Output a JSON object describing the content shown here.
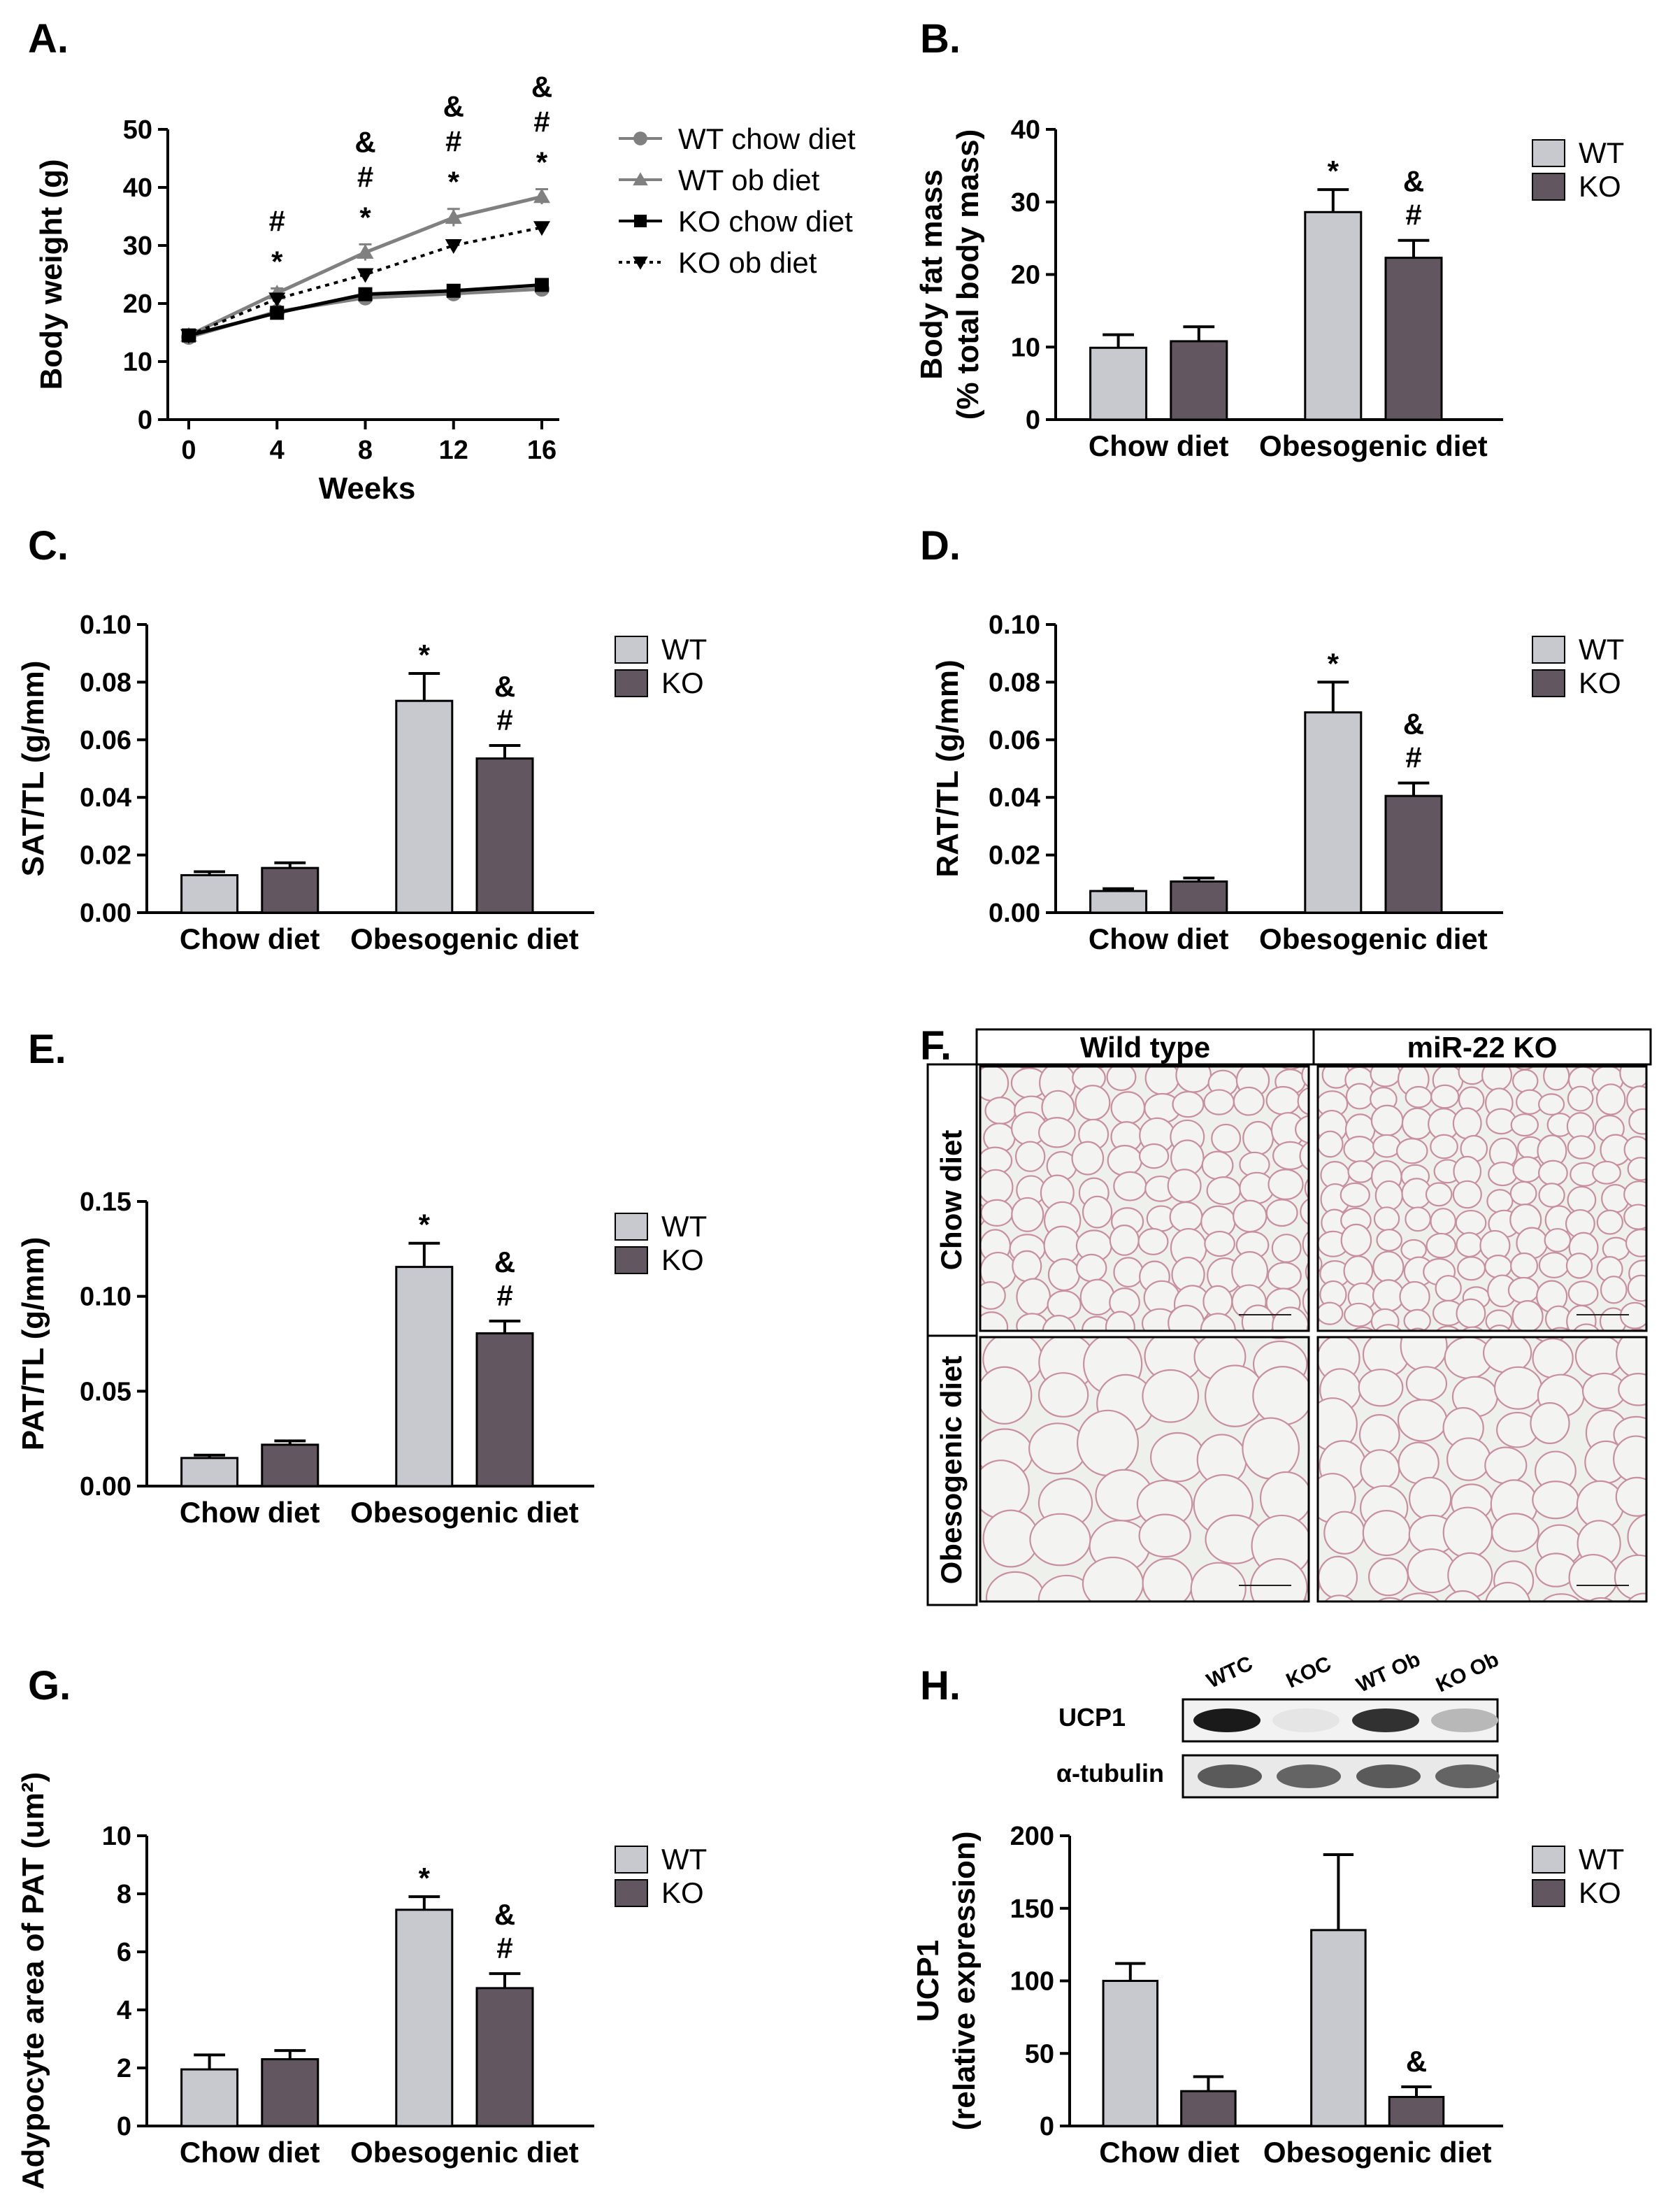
{
  "colors": {
    "wt": "#c8c8cf",
    "ko": "#625760",
    "line_gray": "#808080",
    "line_black": "#000000",
    "tissue_bg": "#eef0ec",
    "tissue_cell": "#c8909e"
  },
  "chart_data": [
    {
      "id": "A",
      "panel_label": "A.",
      "type": "line",
      "ylabel": "Body weight (g)",
      "xlabel": "Weeks",
      "ylim": [
        0,
        50
      ],
      "yticks": [
        0,
        10,
        20,
        30,
        40,
        50
      ],
      "x": [
        0,
        4,
        8,
        12,
        16
      ],
      "xticks": [
        "0",
        "4",
        "8",
        "12",
        "16"
      ],
      "legend_position": "right",
      "series": [
        {
          "name": "WT chow diet",
          "marker": "circle",
          "dash": "solid",
          "color": "#808080",
          "values": [
            14.2,
            18.6,
            21.0,
            21.7,
            22.5
          ],
          "errors": [
            0.4,
            0.5,
            0.6,
            0.6,
            0.7
          ]
        },
        {
          "name": "WT ob diet",
          "marker": "triangle-up",
          "dash": "solid",
          "color": "#808080",
          "values": [
            14.5,
            21.8,
            28.8,
            34.8,
            38.4
          ],
          "errors": [
            0.5,
            0.8,
            1.4,
            1.5,
            1.3
          ]
        },
        {
          "name": "KO chow diet",
          "marker": "square",
          "dash": "solid",
          "color": "#000000",
          "values": [
            14.5,
            18.4,
            21.6,
            22.2,
            23.2
          ],
          "errors": [
            0.3,
            0.4,
            0.4,
            0.4,
            0.4
          ]
        },
        {
          "name": "KO ob diet",
          "marker": "triangle-down",
          "dash": "dotted",
          "color": "#000000",
          "values": [
            14.5,
            20.8,
            25.0,
            30.0,
            33.1
          ],
          "errors": [
            0.3,
            0.4,
            0.5,
            0.5,
            0.5
          ]
        }
      ],
      "annotations": [
        {
          "x": 4,
          "lines": [
            "#",
            "*"
          ]
        },
        {
          "x": 8,
          "lines": [
            "&",
            "#",
            "*"
          ]
        },
        {
          "x": 12,
          "lines": [
            "&",
            "#",
            "*"
          ]
        },
        {
          "x": 16,
          "lines": [
            "&",
            "#",
            "*"
          ]
        }
      ]
    },
    {
      "id": "B",
      "panel_label": "B.",
      "type": "bar",
      "ylabel_lines": [
        "Body fat mass",
        "(% total body mass)"
      ],
      "ylim": [
        0,
        40
      ],
      "yticks": [
        "0",
        "10",
        "20",
        "30",
        "40"
      ],
      "categories": [
        "Chow diet",
        "Obesogenic diet"
      ],
      "series": [
        {
          "name": "WT",
          "values": [
            9.9,
            28.6
          ],
          "errors": [
            1.8,
            3.1
          ]
        },
        {
          "name": "KO",
          "values": [
            10.8,
            22.3
          ],
          "errors": [
            2.0,
            2.4
          ]
        }
      ],
      "annotations": [
        {
          "cat": 1,
          "series": 0,
          "lines": [
            "*"
          ]
        },
        {
          "cat": 1,
          "series": 1,
          "lines": [
            "&",
            "#"
          ]
        }
      ],
      "legend_position": "top-right"
    },
    {
      "id": "C",
      "panel_label": "C.",
      "type": "bar",
      "ylabel_lines": [
        "SAT/TL  (g/mm)"
      ],
      "ylim": [
        0,
        0.1
      ],
      "yticks": [
        "0.00",
        "0.02",
        "0.04",
        "0.06",
        "0.08",
        "0.10"
      ],
      "categories": [
        "Chow diet",
        "Obesogenic diet"
      ],
      "series": [
        {
          "name": "WT",
          "values": [
            0.013,
            0.0735
          ],
          "errors": [
            0.0012,
            0.0095
          ]
        },
        {
          "name": "KO",
          "values": [
            0.0155,
            0.0535
          ],
          "errors": [
            0.0018,
            0.0045
          ]
        }
      ],
      "annotations": [
        {
          "cat": 1,
          "series": 0,
          "lines": [
            "*"
          ]
        },
        {
          "cat": 1,
          "series": 1,
          "lines": [
            "&",
            "#"
          ]
        }
      ],
      "legend_position": "top-right"
    },
    {
      "id": "D",
      "panel_label": "D.",
      "type": "bar",
      "ylabel_lines": [
        "RAT/TL  (g/mm)"
      ],
      "ylim": [
        0,
        0.1
      ],
      "yticks": [
        "0.00",
        "0.02",
        "0.04",
        "0.06",
        "0.08",
        "0.10"
      ],
      "categories": [
        "Chow diet",
        "Obesogenic diet"
      ],
      "series": [
        {
          "name": "WT",
          "values": [
            0.0075,
            0.0695
          ],
          "errors": [
            0.0008,
            0.0105
          ]
        },
        {
          "name": "KO",
          "values": [
            0.0108,
            0.0405
          ],
          "errors": [
            0.0012,
            0.0045
          ]
        }
      ],
      "annotations": [
        {
          "cat": 1,
          "series": 0,
          "lines": [
            "*"
          ]
        },
        {
          "cat": 1,
          "series": 1,
          "lines": [
            "&",
            "#"
          ]
        }
      ],
      "legend_position": "top-right"
    },
    {
      "id": "E",
      "panel_label": "E.",
      "type": "bar",
      "ylabel_lines": [
        "PAT/TL (g/mm)"
      ],
      "ylim": [
        0,
        0.15
      ],
      "yticks": [
        "0.00",
        "0.05",
        "0.10",
        "0.15"
      ],
      "categories": [
        "Chow diet",
        "Obesogenic diet"
      ],
      "series": [
        {
          "name": "WT",
          "values": [
            0.0148,
            0.1155
          ],
          "errors": [
            0.0015,
            0.0125
          ]
        },
        {
          "name": "KO",
          "values": [
            0.0218,
            0.0805
          ],
          "errors": [
            0.002,
            0.0065
          ]
        }
      ],
      "annotations": [
        {
          "cat": 1,
          "series": 0,
          "lines": [
            "*"
          ]
        },
        {
          "cat": 1,
          "series": 1,
          "lines": [
            "&",
            "#"
          ]
        }
      ],
      "legend_position": "top-right"
    },
    {
      "id": "G",
      "panel_label": "G.",
      "type": "bar",
      "ylabel_lines": [
        "Adypocyte area of PAT  (um²)"
      ],
      "ylim": [
        0,
        10
      ],
      "yticks": [
        "0",
        "2",
        "4",
        "6",
        "8",
        "10"
      ],
      "categories": [
        "Chow diet",
        "Obesogenic diet"
      ],
      "series": [
        {
          "name": "WT",
          "values": [
            1.95,
            7.45
          ],
          "errors": [
            0.5,
            0.45
          ]
        },
        {
          "name": "KO",
          "values": [
            2.3,
            4.75
          ],
          "errors": [
            0.3,
            0.5
          ]
        }
      ],
      "annotations": [
        {
          "cat": 1,
          "series": 0,
          "lines": [
            "*"
          ]
        },
        {
          "cat": 1,
          "series": 1,
          "lines": [
            "&",
            "#"
          ]
        }
      ],
      "legend_position": "top-right"
    },
    {
      "id": "H",
      "panel_label": "H.",
      "type": "bar",
      "ylabel_lines": [
        "UCP1",
        "(relative expression)"
      ],
      "ylim": [
        0,
        200
      ],
      "yticks": [
        "0",
        "50",
        "100",
        "150",
        "200"
      ],
      "categories": [
        "Chow diet",
        "Obesogenic diet"
      ],
      "series": [
        {
          "name": "WT",
          "values": [
            100,
            135
          ],
          "errors": [
            12,
            52
          ]
        },
        {
          "name": "KO",
          "values": [
            24,
            20
          ],
          "errors": [
            10,
            7
          ]
        }
      ],
      "annotations": [
        {
          "cat": 1,
          "series": 1,
          "lines": [
            "&"
          ]
        }
      ],
      "legend_position": "top-right"
    }
  ],
  "histology": {
    "panel_label": "F.",
    "columns": [
      "Wild type",
      "miR-22 KO"
    ],
    "rows": [
      "Chow diet",
      "Obesogenic diet"
    ]
  },
  "western_blot": {
    "lanes": [
      "WTC",
      "KOC",
      "WT Ob",
      "KO Ob"
    ],
    "bands": [
      "UCP1",
      "α-tubulin"
    ],
    "ucp1_intensity": [
      0.95,
      0.05,
      0.85,
      0.25
    ],
    "tubulin_intensity": [
      0.75,
      0.7,
      0.75,
      0.7
    ]
  }
}
